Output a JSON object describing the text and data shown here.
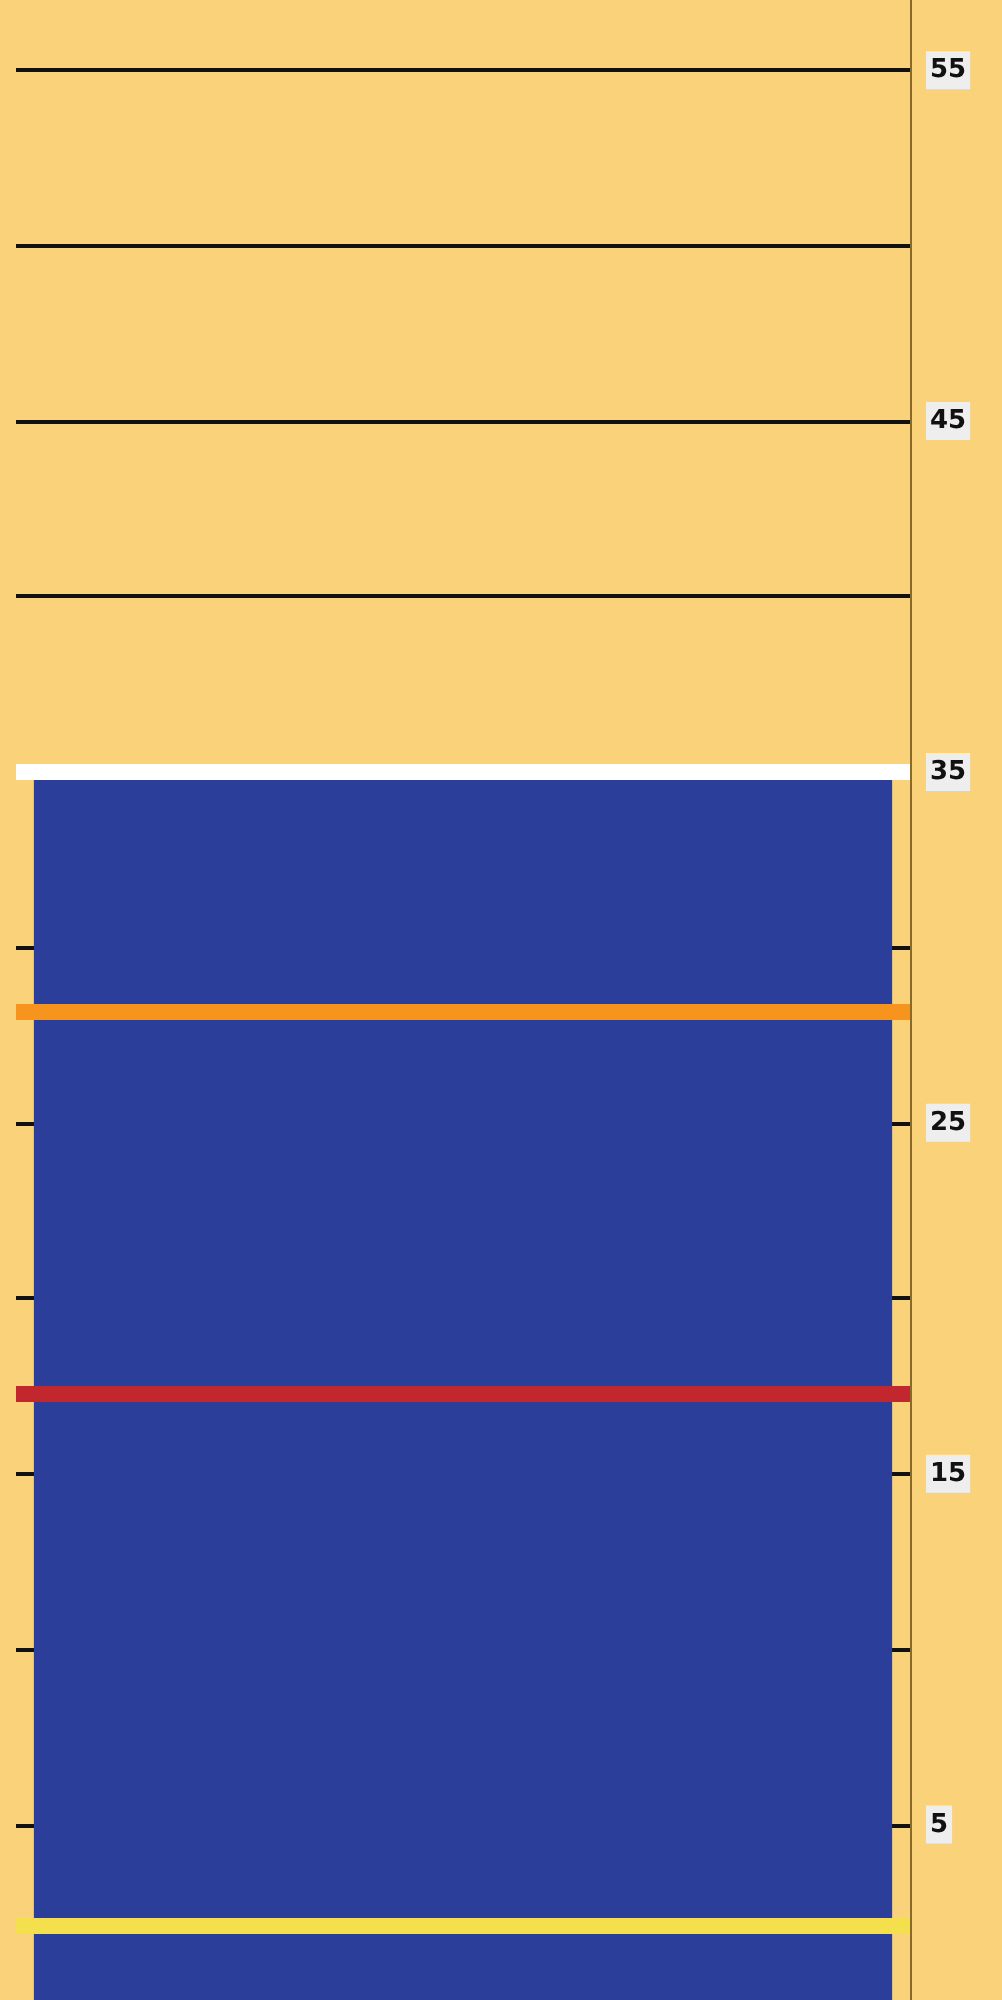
{
  "chart_data": {
    "type": "bar",
    "categories": [
      null
    ],
    "values": [
      35
    ],
    "color": "#2b3f9a",
    "ylim": [
      0,
      57
    ],
    "yticks": [
      5,
      {
        "value": 10,
        "label": null
      },
      15,
      {
        "value": 20,
        "label": null
      },
      25,
      {
        "value": 30,
        "label": null
      },
      35,
      {
        "value": 40,
        "label": null
      },
      45,
      {
        "value": 50,
        "label": null
      },
      55
    ],
    "grid": "y",
    "ref_lines": [
      {
        "axis": "y",
        "value": 35,
        "color": "#ffffff"
      },
      {
        "axis": "y",
        "value": 28.2,
        "color": "#f7941d"
      },
      {
        "axis": "y",
        "value": 17.3,
        "color": "#c1272d"
      },
      {
        "axis": "y",
        "value": 2.1,
        "color": "#f4e04d"
      }
    ]
  }
}
